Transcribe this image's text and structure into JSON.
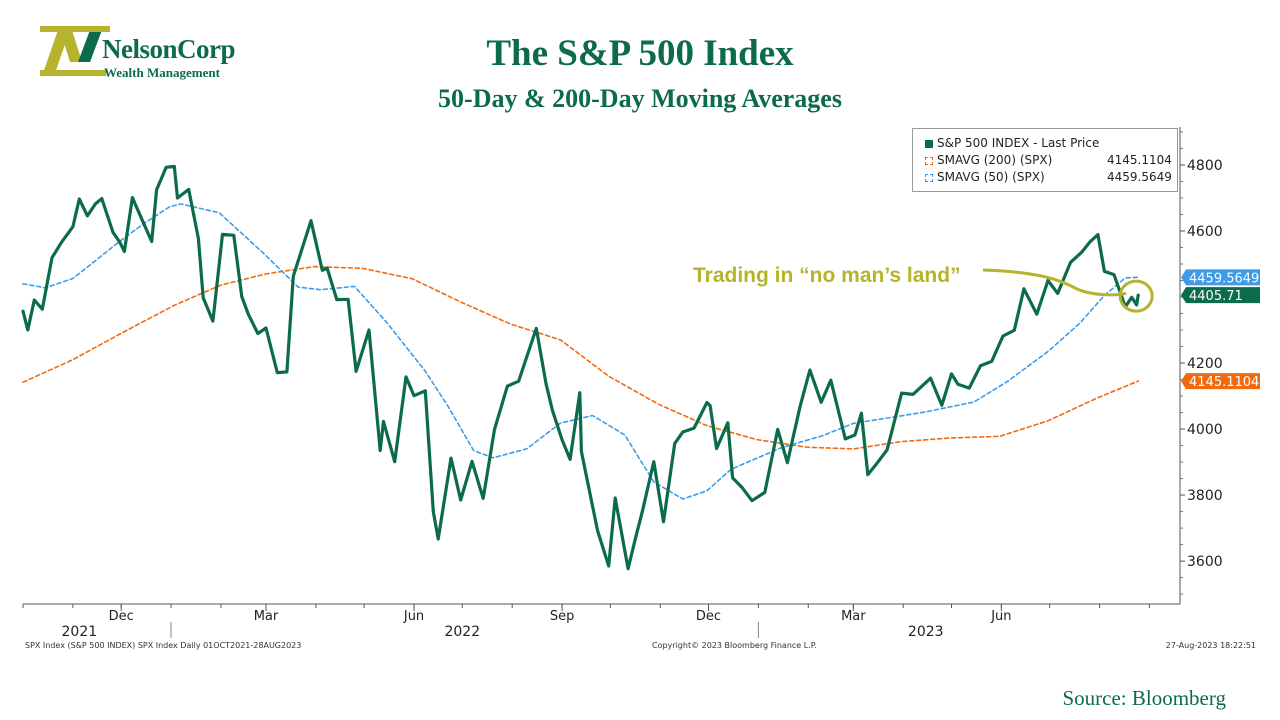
{
  "brand": {
    "name": "NelsonCorp",
    "tagline": "Wealth Management",
    "logo_letter": "N",
    "colors": {
      "green": "#0b6b4a",
      "olive": "#b5b42c"
    }
  },
  "header": {
    "title": "The S&P 500 Index",
    "subtitle": "50-Day & 200-Day Moving Averages"
  },
  "legend": {
    "items": [
      {
        "label": "S&P 500 INDEX - Last Price",
        "value": "",
        "color": "#0b6b4a",
        "style": "filled"
      },
      {
        "label": "SMAVG (200) (SPX)",
        "value": "4145.1104",
        "color": "#f26a10",
        "style": "dashed"
      },
      {
        "label": "SMAVG (50) (SPX)",
        "value": "4459.5649",
        "color": "#3d9be9",
        "style": "dashed"
      }
    ]
  },
  "annotation": {
    "text": "Trading in “no man’s land”",
    "color": "#b5b42c"
  },
  "footer": {
    "left": "SPX Index (S&P 500 INDEX) SPX Index  Daily 01OCT2021-28AUG2023",
    "center": "Copyright© 2023 Bloomberg Finance L.P.",
    "right": "27-Aug-2023 18:22:51"
  },
  "source": "Source: Bloomberg",
  "chart_data": {
    "type": "line",
    "x_axis": {
      "month_ticks": [
        {
          "label": "Dec",
          "date": "2021-12-01"
        },
        {
          "label": "Mar",
          "date": "2022-03-01"
        },
        {
          "label": "Jun",
          "date": "2022-06-01"
        },
        {
          "label": "Sep",
          "date": "2022-09-01"
        },
        {
          "label": "Dec",
          "date": "2022-12-01"
        },
        {
          "label": "Mar",
          "date": "2023-03-01"
        },
        {
          "label": "Jun",
          "date": "2023-06-01"
        }
      ],
      "year_labels": [
        {
          "label": "2021",
          "date": "2021-11-05"
        },
        {
          "label": "2022",
          "date": "2022-07-01"
        },
        {
          "label": "2023",
          "date": "2023-04-15"
        }
      ],
      "range": [
        "2021-10-01",
        "2023-09-20"
      ]
    },
    "y_axis": {
      "ticks": [
        3600,
        3800,
        4000,
        4200,
        4400,
        4600,
        4800
      ],
      "range": [
        3470,
        4915
      ],
      "side": "right"
    },
    "last_value_labels": [
      {
        "value": 4459.5649,
        "text": "4459.5649",
        "color": "#3d9be9"
      },
      {
        "value": 4405.71,
        "text": "4405.71",
        "color": "#0b6b4a"
      },
      {
        "value": 4145.1104,
        "text": "4145.1104",
        "color": "#f26a10"
      }
    ],
    "series": [
      {
        "name": "S&P 500 INDEX - Last Price",
        "color": "#0b6b4a",
        "style": "solid",
        "points": [
          [
            "2021-10-01",
            4357
          ],
          [
            "2021-10-04",
            4300
          ],
          [
            "2021-10-08",
            4391
          ],
          [
            "2021-10-13",
            4363
          ],
          [
            "2021-10-19",
            4519
          ],
          [
            "2021-10-25",
            4566
          ],
          [
            "2021-11-01",
            4613
          ],
          [
            "2021-11-05",
            4697
          ],
          [
            "2021-11-10",
            4646
          ],
          [
            "2021-11-15",
            4682
          ],
          [
            "2021-11-19",
            4698
          ],
          [
            "2021-11-26",
            4595
          ],
          [
            "2021-11-30",
            4567
          ],
          [
            "2021-12-03",
            4538
          ],
          [
            "2021-12-08",
            4701
          ],
          [
            "2021-12-14",
            4634
          ],
          [
            "2021-12-20",
            4568
          ],
          [
            "2021-12-23",
            4725
          ],
          [
            "2021-12-29",
            4793
          ],
          [
            "2022-01-03",
            4796
          ],
          [
            "2022-01-05",
            4700
          ],
          [
            "2022-01-12",
            4726
          ],
          [
            "2022-01-18",
            4577
          ],
          [
            "2022-01-21",
            4398
          ],
          [
            "2022-01-27",
            4327
          ],
          [
            "2022-02-02",
            4590
          ],
          [
            "2022-02-09",
            4587
          ],
          [
            "2022-02-14",
            4401
          ],
          [
            "2022-02-18",
            4348
          ],
          [
            "2022-02-24",
            4289
          ],
          [
            "2022-03-01",
            4306
          ],
          [
            "2022-03-08",
            4171
          ],
          [
            "2022-03-14",
            4173
          ],
          [
            "2022-03-18",
            4463
          ],
          [
            "2022-03-29",
            4631
          ],
          [
            "2022-04-05",
            4481
          ],
          [
            "2022-04-08",
            4488
          ],
          [
            "2022-04-14",
            4392
          ],
          [
            "2022-04-21",
            4393
          ],
          [
            "2022-04-26",
            4175
          ],
          [
            "2022-05-04",
            4300
          ],
          [
            "2022-05-11",
            3935
          ],
          [
            "2022-05-13",
            4023
          ],
          [
            "2022-05-20",
            3901
          ],
          [
            "2022-05-27",
            4158
          ],
          [
            "2022-06-01",
            4101
          ],
          [
            "2022-06-08",
            4116
          ],
          [
            "2022-06-13",
            3750
          ],
          [
            "2022-06-16",
            3667
          ],
          [
            "2022-06-24",
            3912
          ],
          [
            "2022-06-30",
            3785
          ],
          [
            "2022-07-07",
            3902
          ],
          [
            "2022-07-14",
            3790
          ],
          [
            "2022-07-21",
            3999
          ],
          [
            "2022-07-29",
            4130
          ],
          [
            "2022-08-05",
            4145
          ],
          [
            "2022-08-16",
            4305
          ],
          [
            "2022-08-22",
            4138
          ],
          [
            "2022-08-26",
            4057
          ],
          [
            "2022-09-01",
            3967
          ],
          [
            "2022-09-06",
            3908
          ],
          [
            "2022-09-12",
            4110
          ],
          [
            "2022-09-13",
            3932
          ],
          [
            "2022-09-23",
            3693
          ],
          [
            "2022-09-30",
            3585
          ],
          [
            "2022-10-04",
            3791
          ],
          [
            "2022-10-12",
            3577
          ],
          [
            "2022-10-17",
            3677
          ],
          [
            "2022-10-21",
            3752
          ],
          [
            "2022-10-28",
            3901
          ],
          [
            "2022-11-03",
            3719
          ],
          [
            "2022-11-10",
            3956
          ],
          [
            "2022-11-15",
            3991
          ],
          [
            "2022-11-22",
            4003
          ],
          [
            "2022-11-30",
            4080
          ],
          [
            "2022-12-02",
            4071
          ],
          [
            "2022-12-06",
            3941
          ],
          [
            "2022-12-13",
            4019
          ],
          [
            "2022-12-16",
            3852
          ],
          [
            "2022-12-22",
            3822
          ],
          [
            "2022-12-28",
            3783
          ],
          [
            "2023-01-05",
            3808
          ],
          [
            "2023-01-13",
            3999
          ],
          [
            "2023-01-19",
            3898
          ],
          [
            "2023-01-27",
            4070
          ],
          [
            "2023-02-02",
            4179
          ],
          [
            "2023-02-09",
            4081
          ],
          [
            "2023-02-15",
            4148
          ],
          [
            "2023-02-24",
            3970
          ],
          [
            "2023-03-02",
            3982
          ],
          [
            "2023-03-06",
            4048
          ],
          [
            "2023-03-10",
            3862
          ],
          [
            "2023-03-15",
            3892
          ],
          [
            "2023-03-22",
            3937
          ],
          [
            "2023-03-31",
            4109
          ],
          [
            "2023-04-07",
            4105
          ],
          [
            "2023-04-18",
            4154
          ],
          [
            "2023-04-25",
            4072
          ],
          [
            "2023-05-01",
            4167
          ],
          [
            "2023-05-05",
            4136
          ],
          [
            "2023-05-12",
            4124
          ],
          [
            "2023-05-19",
            4192
          ],
          [
            "2023-05-26",
            4205
          ],
          [
            "2023-06-02",
            4282
          ],
          [
            "2023-06-09",
            4299
          ],
          [
            "2023-06-15",
            4425
          ],
          [
            "2023-06-23",
            4348
          ],
          [
            "2023-06-30",
            4450
          ],
          [
            "2023-07-06",
            4411
          ],
          [
            "2023-07-14",
            4505
          ],
          [
            "2023-07-21",
            4536
          ],
          [
            "2023-07-26",
            4567
          ],
          [
            "2023-07-31",
            4589
          ],
          [
            "2023-08-04",
            4478
          ],
          [
            "2023-08-10",
            4468
          ],
          [
            "2023-08-17",
            4370
          ],
          [
            "2023-08-21",
            4399
          ],
          [
            "2023-08-24",
            4376
          ],
          [
            "2023-08-25",
            4405.71
          ]
        ]
      },
      {
        "name": "SMAVG (50) (SPX)",
        "color": "#3d9be9",
        "style": "dashed",
        "points": [
          [
            "2021-10-01",
            4440
          ],
          [
            "2021-10-15",
            4428
          ],
          [
            "2021-11-01",
            4456
          ],
          [
            "2021-11-15",
            4510
          ],
          [
            "2021-12-01",
            4572
          ],
          [
            "2021-12-15",
            4622
          ],
          [
            "2021-12-31",
            4673
          ],
          [
            "2022-01-07",
            4682
          ],
          [
            "2022-01-31",
            4655
          ],
          [
            "2022-02-28",
            4530
          ],
          [
            "2022-03-21",
            4430
          ],
          [
            "2022-04-04",
            4422
          ],
          [
            "2022-04-25",
            4432
          ],
          [
            "2022-05-15",
            4323
          ],
          [
            "2022-06-08",
            4175
          ],
          [
            "2022-06-22",
            4070
          ],
          [
            "2022-07-08",
            3935
          ],
          [
            "2022-07-20",
            3913
          ],
          [
            "2022-08-10",
            3940
          ],
          [
            "2022-08-31",
            4018
          ],
          [
            "2022-09-20",
            4041
          ],
          [
            "2022-10-10",
            3982
          ],
          [
            "2022-10-28",
            3840
          ],
          [
            "2022-11-15",
            3788
          ],
          [
            "2022-11-30",
            3813
          ],
          [
            "2022-12-15",
            3878
          ],
          [
            "2023-01-15",
            3943
          ],
          [
            "2023-02-10",
            3980
          ],
          [
            "2023-03-01",
            4017
          ],
          [
            "2023-03-31",
            4040
          ],
          [
            "2023-04-15",
            4052
          ],
          [
            "2023-05-15",
            4082
          ],
          [
            "2023-06-05",
            4145
          ],
          [
            "2023-06-30",
            4235
          ],
          [
            "2023-07-20",
            4322
          ],
          [
            "2023-08-04",
            4405
          ],
          [
            "2023-08-17",
            4458
          ],
          [
            "2023-08-25",
            4459.5649
          ]
        ]
      },
      {
        "name": "SMAVG (200) (SPX)",
        "color": "#f26a10",
        "style": "dashed",
        "points": [
          [
            "2021-10-01",
            4142
          ],
          [
            "2021-11-01",
            4210
          ],
          [
            "2021-12-01",
            4290
          ],
          [
            "2022-01-03",
            4375
          ],
          [
            "2022-02-01",
            4436
          ],
          [
            "2022-03-01",
            4470
          ],
          [
            "2022-03-31",
            4492
          ],
          [
            "2022-04-30",
            4487
          ],
          [
            "2022-05-31",
            4455
          ],
          [
            "2022-06-30",
            4385
          ],
          [
            "2022-07-31",
            4318
          ],
          [
            "2022-08-31",
            4270
          ],
          [
            "2022-09-30",
            4160
          ],
          [
            "2022-10-31",
            4075
          ],
          [
            "2022-11-30",
            4010
          ],
          [
            "2022-12-31",
            3968
          ],
          [
            "2023-01-31",
            3945
          ],
          [
            "2023-03-01",
            3940
          ],
          [
            "2023-03-31",
            3962
          ],
          [
            "2023-04-30",
            3973
          ],
          [
            "2023-05-31",
            3978
          ],
          [
            "2023-06-30",
            4025
          ],
          [
            "2023-07-31",
            4095
          ],
          [
            "2023-08-25",
            4145.1104
          ]
        ]
      }
    ]
  }
}
